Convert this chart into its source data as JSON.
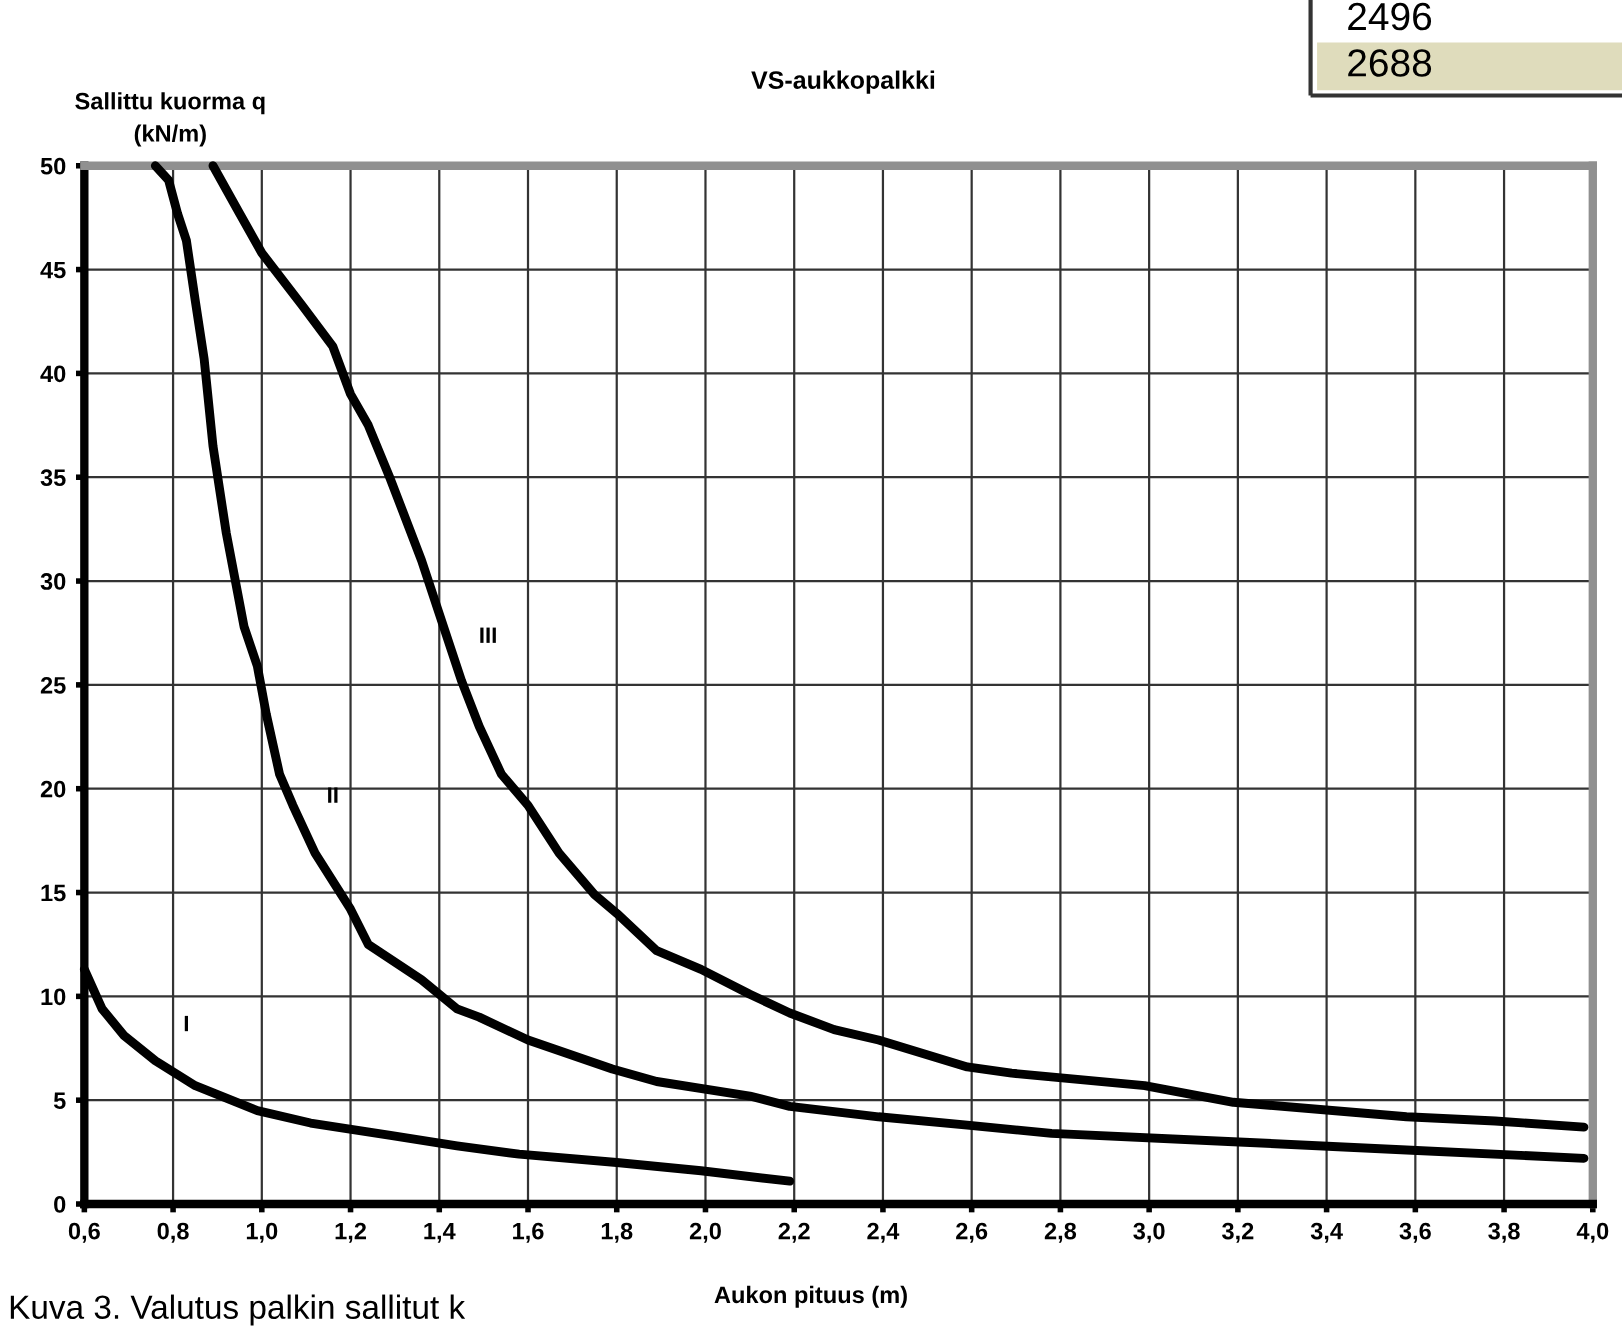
{
  "chart_data": {
    "type": "line",
    "title": "VS-aukkopalkki",
    "xlabel": "Aukon pituus (m)",
    "ylabel": "Sallittu kuorma q\n(kN/m)",
    "annotations": [
      "2496",
      "2688",
      "Kuva 3. Valutus palkin sallitut k"
    ],
    "series": [
      {
        "name": "I",
        "color": "#000000",
        "x": [
          0.6,
          0.64,
          0.69,
          0.76,
          0.85,
          0.99,
          1.11,
          1.29,
          1.44,
          1.58,
          1.8,
          1.99,
          2.19
        ],
        "values": [
          11.3,
          9.4,
          8.1,
          6.9,
          5.7,
          4.5,
          3.9,
          3.3,
          2.8,
          2.4,
          2.0,
          1.6,
          1.1
        ]
      },
      {
        "name": "II",
        "color": "#000000",
        "x": [
          0.76,
          0.79,
          0.81,
          0.83,
          0.85,
          0.87,
          0.89,
          0.92,
          0.96,
          0.99,
          1.01,
          1.04,
          1.07,
          1.12,
          1.2,
          1.24,
          1.36,
          1.44,
          1.49,
          1.6,
          1.79,
          1.89,
          2.1,
          2.19,
          2.39,
          2.59,
          2.78,
          3.19,
          3.58,
          3.98
        ],
        "values": [
          50,
          49.3,
          47.7,
          46.4,
          43.5,
          40.7,
          36.5,
          32.3,
          27.8,
          25.9,
          23.6,
          20.7,
          19.2,
          16.9,
          14.2,
          12.5,
          10.8,
          9.4,
          9.0,
          7.9,
          6.5,
          5.9,
          5.2,
          4.7,
          4.2,
          3.8,
          3.4,
          3.0,
          2.6,
          2.2
        ]
      },
      {
        "name": "III",
        "color": "#000000",
        "x": [
          0.89,
          0.95,
          1.0,
          1.09,
          1.16,
          1.2,
          1.24,
          1.29,
          1.36,
          1.45,
          1.49,
          1.54,
          1.6,
          1.67,
          1.75,
          1.8,
          1.89,
          1.99,
          2.1,
          2.19,
          2.29,
          2.39,
          2.59,
          2.69,
          2.99,
          3.19,
          3.58,
          3.78,
          3.98
        ],
        "values": [
          50,
          47.7,
          45.8,
          43.3,
          41.3,
          39.0,
          37.5,
          34.9,
          31.0,
          25.2,
          23.0,
          20.7,
          19.2,
          16.9,
          14.9,
          14.0,
          12.2,
          11.3,
          10.1,
          9.2,
          8.4,
          7.9,
          6.6,
          6.3,
          5.7,
          4.9,
          4.2,
          4.0,
          3.7
        ]
      }
    ],
    "xlim": [
      0.6,
      4.0
    ],
    "ylim": [
      0,
      50
    ],
    "xticks": [
      {
        "value": 0.6,
        "label": "0,6"
      },
      {
        "value": 0.8,
        "label": "0,8"
      },
      {
        "value": 1.0,
        "label": "1,0"
      },
      {
        "value": 1.2,
        "label": "1,2"
      },
      {
        "value": 1.4,
        "label": "1,4"
      },
      {
        "value": 1.6,
        "label": "1,6"
      },
      {
        "value": 1.8,
        "label": "1,8"
      },
      {
        "value": 2.0,
        "label": "2,0"
      },
      {
        "value": 2.2,
        "label": "2,2"
      },
      {
        "value": 2.4,
        "label": "2,4"
      },
      {
        "value": 2.6,
        "label": "2,6"
      },
      {
        "value": 2.8,
        "label": "2,8"
      },
      {
        "value": 3.0,
        "label": "3,0"
      },
      {
        "value": 3.2,
        "label": "3,2"
      },
      {
        "value": 3.4,
        "label": "3,4"
      },
      {
        "value": 3.6,
        "label": "3,6"
      },
      {
        "value": 3.8,
        "label": "3,8"
      },
      {
        "value": 4.0,
        "label": "4,0"
      }
    ],
    "yticks": [
      0,
      5,
      10,
      15,
      20,
      25,
      30,
      35,
      40,
      45,
      50
    ],
    "grid": true,
    "legend": false,
    "marker": "none",
    "line_style": "solid"
  }
}
